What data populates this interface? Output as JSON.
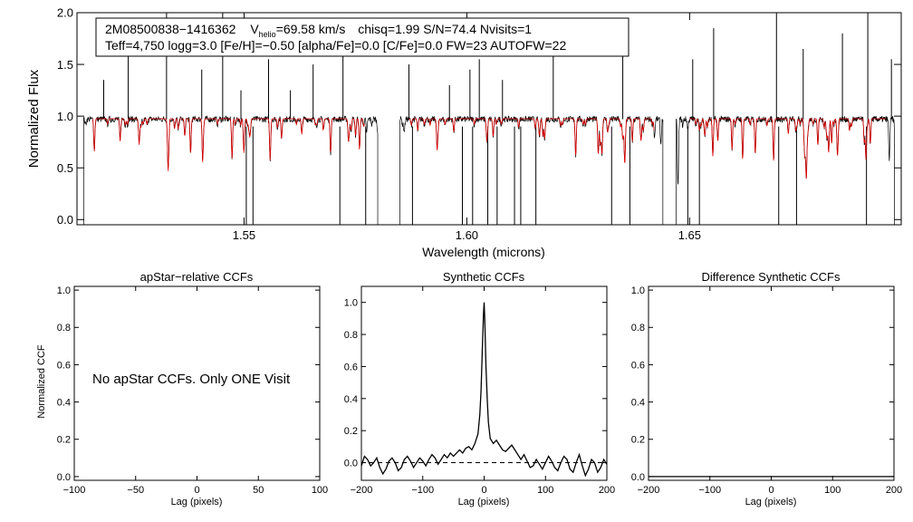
{
  "chart_data": [
    {
      "type": "line",
      "panel": "spectrum",
      "xlabel": "Wavelength (microns)",
      "ylabel": "Normalized Flux",
      "xlim": [
        1.5125,
        1.6975
      ],
      "ylim": [
        -0.05,
        2.0
      ],
      "xticks": [
        1.55,
        1.6,
        1.65
      ],
      "xtick_labels": [
        "1.55",
        "1.60",
        "1.65"
      ],
      "yticks": [
        0.0,
        0.5,
        1.0,
        1.5,
        2.0
      ],
      "ytick_labels": [
        "0.0",
        "0.5",
        "1.0",
        "1.5",
        "2.0"
      ],
      "chips": [
        [
          1.514,
          1.58
        ],
        [
          1.585,
          1.644
        ],
        [
          1.647,
          1.696
        ]
      ],
      "model_chips": [
        [
          1.516,
          1.577
        ],
        [
          1.587,
          1.642
        ],
        [
          1.65,
          1.694
        ]
      ],
      "sky_emission_lines": [
        [
          1.5185,
          1.35
        ],
        [
          1.524,
          1.75
        ],
        [
          1.5326,
          2.0
        ],
        [
          1.5405,
          1.45
        ],
        [
          1.5452,
          2.0
        ],
        [
          1.5493,
          1.25
        ],
        [
          1.5555,
          1.55
        ],
        [
          1.5604,
          1.25
        ],
        [
          1.5655,
          1.5
        ],
        [
          1.5722,
          1.75
        ],
        [
          1.587,
          1.5
        ],
        [
          1.5961,
          1.3
        ],
        [
          1.6007,
          1.45
        ],
        [
          1.6028,
          1.55
        ],
        [
          1.608,
          1.35
        ],
        [
          1.6194,
          1.6
        ],
        [
          1.635,
          1.7
        ],
        [
          1.6507,
          1.55
        ],
        [
          1.6554,
          1.85
        ],
        [
          1.6695,
          2.0
        ],
        [
          1.6755,
          1.65
        ],
        [
          1.6843,
          1.8
        ],
        [
          1.69,
          2.0
        ],
        [
          1.6953,
          1.55
        ]
      ],
      "series": [
        {
          "name": "observed",
          "color": "#000000"
        },
        {
          "name": "model",
          "color": "#dd0000"
        }
      ],
      "legend": {
        "line1": {
          "id": "2M08500838−1416362",
          "v_label": "V",
          "v_sub": "helio",
          "v_value": "=69.58 km/s",
          "rest": "chisq=1.99  S/N=74.4  Nvisits=1"
        },
        "line2": "Teff=4,750 logg=3.0 [Fe/H]=−0.50 [alpha/Fe]=0.0 [C/Fe]=0.0 FW=23 AUTOFW=22"
      }
    },
    {
      "type": "line",
      "panel": "apstar-ccf",
      "title": "apStar−relative CCFs",
      "xlabel": "Lag (pixels)",
      "ylabel": "Normalized CCF",
      "xlim": [
        -100,
        100
      ],
      "ylim": [
        -0.02,
        1.02
      ],
      "xticks": [
        -100,
        -50,
        0,
        50,
        100
      ],
      "xtick_labels": [
        "−100",
        "−50",
        "0",
        "50",
        "100"
      ],
      "yticks": [
        0.0,
        0.2,
        0.4,
        0.6,
        0.8,
        1.0
      ],
      "ytick_labels": [
        "0.0",
        "0.2",
        "0.4",
        "0.6",
        "0.8",
        "1.0"
      ],
      "annotation": "No apStar CCFs.  Only ONE Visit",
      "series": []
    },
    {
      "type": "line",
      "panel": "synthetic-ccf",
      "title": "Synthetic CCFs",
      "xlabel": "Lag (pixels)",
      "xlim": [
        -200,
        200
      ],
      "ylim": [
        -0.11,
        1.1
      ],
      "xticks": [
        -200,
        -100,
        0,
        100,
        200
      ],
      "xtick_labels": [
        "−200",
        "−100",
        "0",
        "100",
        "200"
      ],
      "yticks": [
        0.0,
        0.2,
        0.4,
        0.6,
        0.8,
        1.0
      ],
      "ytick_labels": [
        "0.0",
        "0.2",
        "0.4",
        "0.6",
        "0.8",
        "1.0"
      ],
      "reference_line": 0.0,
      "series": [
        {
          "name": "synthetic-ccf",
          "color": "#000000",
          "x": [
            -200,
            -195,
            -190,
            -185,
            -180,
            -175,
            -170,
            -165,
            -160,
            -155,
            -150,
            -145,
            -140,
            -135,
            -130,
            -125,
            -120,
            -115,
            -110,
            -105,
            -100,
            -95,
            -90,
            -85,
            -80,
            -75,
            -70,
            -65,
            -60,
            -55,
            -50,
            -45,
            -40,
            -35,
            -30,
            -25,
            -20,
            -15,
            -10,
            -7,
            -5,
            -3,
            -1,
            0,
            1,
            3,
            5,
            7,
            10,
            15,
            20,
            25,
            30,
            35,
            40,
            45,
            50,
            55,
            60,
            65,
            70,
            75,
            80,
            85,
            90,
            95,
            100,
            105,
            110,
            115,
            120,
            125,
            130,
            135,
            140,
            145,
            150,
            155,
            160,
            165,
            170,
            175,
            180,
            185,
            190,
            195,
            200
          ],
          "values": [
            -0.02,
            0.04,
            0.02,
            -0.02,
            0.0,
            0.03,
            -0.03,
            -0.07,
            -0.04,
            0.01,
            0.03,
            0.0,
            -0.05,
            -0.03,
            0.02,
            0.04,
            0.01,
            -0.03,
            0.0,
            0.03,
            0.01,
            -0.02,
            0.02,
            0.05,
            0.03,
            -0.01,
            0.02,
            0.05,
            0.03,
            0.06,
            0.04,
            0.06,
            0.08,
            0.06,
            0.09,
            0.1,
            0.08,
            0.12,
            0.18,
            0.3,
            0.45,
            0.7,
            0.93,
            1.0,
            0.9,
            0.6,
            0.4,
            0.25,
            0.15,
            0.12,
            0.14,
            0.11,
            0.08,
            0.07,
            0.09,
            0.11,
            0.08,
            0.05,
            0.02,
            0.05,
            0.01,
            -0.03,
            -0.02,
            0.02,
            -0.01,
            -0.04,
            0.0,
            0.04,
            0.01,
            -0.03,
            -0.05,
            0.0,
            0.04,
            0.02,
            -0.04,
            -0.06,
            0.0,
            0.05,
            -0.02,
            -0.08,
            -0.04,
            0.02,
            0.0,
            -0.06,
            -0.03,
            0.02,
            -0.01
          ]
        }
      ]
    },
    {
      "type": "line",
      "panel": "difference-ccf",
      "title": "Difference Synthetic CCFs",
      "xlabel": "Lag (pixels)",
      "xlim": [
        -200,
        200
      ],
      "ylim": [
        -0.02,
        1.02
      ],
      "xticks": [
        -200,
        -100,
        0,
        100,
        200
      ],
      "xtick_labels": [
        "−200",
        "−100",
        "0",
        "100",
        "200"
      ],
      "yticks": [
        0.0,
        0.2,
        0.4,
        0.6,
        0.8,
        1.0
      ],
      "ytick_labels": [
        "0.0",
        "0.2",
        "0.4",
        "0.6",
        "0.8",
        "1.0"
      ],
      "series": [
        {
          "name": "difference-ccf",
          "color": "#000000",
          "x": [
            -200,
            200
          ],
          "values": [
            0.0,
            0.0
          ]
        }
      ]
    }
  ]
}
